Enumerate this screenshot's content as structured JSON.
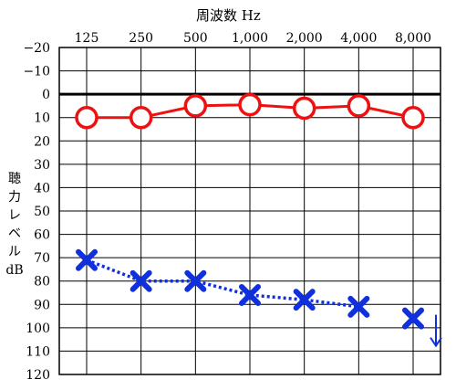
{
  "chart_data": {
    "type": "line",
    "title": "周波数 Hz",
    "ylabel": "聴力レベル dB",
    "ylabel_line1": "聴力レベル",
    "ylabel_line2": "dB",
    "x_categories": [
      "125",
      "250",
      "500",
      "1,000",
      "2,000",
      "4,000",
      "8,000"
    ],
    "x_values": [
      125,
      250,
      500,
      1000,
      2000,
      4000,
      8000
    ],
    "x_scale": "log",
    "ylim": [
      -20,
      120
    ],
    "y_inverted": true,
    "y_ticks": [
      -20,
      -10,
      0,
      10,
      20,
      30,
      40,
      50,
      60,
      70,
      80,
      90,
      100,
      110,
      120
    ],
    "y_tick_labels": [
      "−20",
      "−10",
      "0",
      "10",
      "20",
      "30",
      "40",
      "50",
      "60",
      "70",
      "80",
      "90",
      "100",
      "110",
      "120"
    ],
    "grid": true,
    "reference_line": 0,
    "series": [
      {
        "marker": "circle",
        "color": "#ee1111",
        "line_style": "solid",
        "values": [
          10,
          10,
          5,
          4.5,
          6,
          5,
          10
        ]
      },
      {
        "marker": "cross",
        "color": "#1030dd",
        "line_style": "dotted",
        "values": [
          71,
          80,
          80,
          86,
          88,
          91,
          96
        ],
        "scale_out": [
          false,
          false,
          false,
          false,
          false,
          false,
          true
        ],
        "connected_points": 6
      }
    ]
  }
}
